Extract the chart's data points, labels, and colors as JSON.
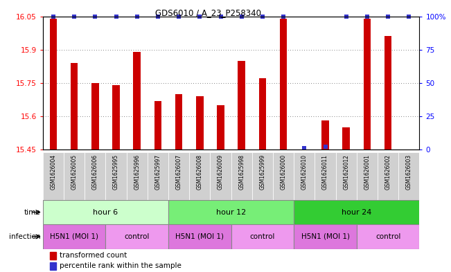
{
  "title": "GDS6010 / A_23_P258340",
  "samples": [
    "GSM1626004",
    "GSM1626005",
    "GSM1626006",
    "GSM1625995",
    "GSM1625996",
    "GSM1625997",
    "GSM1626007",
    "GSM1626008",
    "GSM1626009",
    "GSM1625998",
    "GSM1625999",
    "GSM1626000",
    "GSM1626010",
    "GSM1626011",
    "GSM1626012",
    "GSM1626001",
    "GSM1626002",
    "GSM1626003"
  ],
  "transformed_counts": [
    16.04,
    15.84,
    15.75,
    15.74,
    15.89,
    15.67,
    15.7,
    15.69,
    15.65,
    15.85,
    15.77,
    16.04,
    15.44,
    15.58,
    15.55,
    16.04,
    15.96,
    15.45
  ],
  "percentile_ranks": [
    100,
    100,
    100,
    100,
    100,
    100,
    100,
    100,
    100,
    100,
    100,
    100,
    1,
    2,
    100,
    100,
    100,
    100
  ],
  "ymin": 15.45,
  "ymax": 16.05,
  "yticks": [
    15.45,
    15.6,
    15.75,
    15.9,
    16.05
  ],
  "ytick_labels": [
    "15.45",
    "15.6",
    "15.75",
    "15.9",
    "16.05"
  ],
  "right_yticks": [
    0,
    25,
    50,
    75,
    100
  ],
  "right_ytick_labels": [
    "0",
    "25",
    "50",
    "75",
    "100%"
  ],
  "bar_color": "#cc0000",
  "dot_color": "#3333cc",
  "grid_color": "#555555",
  "bg_color": "#ffffff",
  "time_colors": [
    "#ccffcc",
    "#77ee77",
    "#33cc33"
  ],
  "time_labels": [
    "hour 6",
    "hour 12",
    "hour 24"
  ],
  "time_starts": [
    0,
    6,
    12
  ],
  "time_ends": [
    6,
    12,
    18
  ],
  "inf_labels": [
    "H5N1 (MOI 1)",
    "control",
    "H5N1 (MOI 1)",
    "control",
    "H5N1 (MOI 1)",
    "control"
  ],
  "inf_starts": [
    0,
    3,
    6,
    9,
    12,
    15
  ],
  "inf_ends": [
    3,
    6,
    9,
    12,
    15,
    18
  ],
  "inf_colors": [
    "#dd77dd",
    "#ee99ee",
    "#dd77dd",
    "#ee99ee",
    "#dd77dd",
    "#ee99ee"
  ],
  "sample_bg": "#d0d0d0",
  "legend_items": [
    "transformed count",
    "percentile rank within the sample"
  ],
  "legend_colors": [
    "#cc0000",
    "#3333cc"
  ]
}
